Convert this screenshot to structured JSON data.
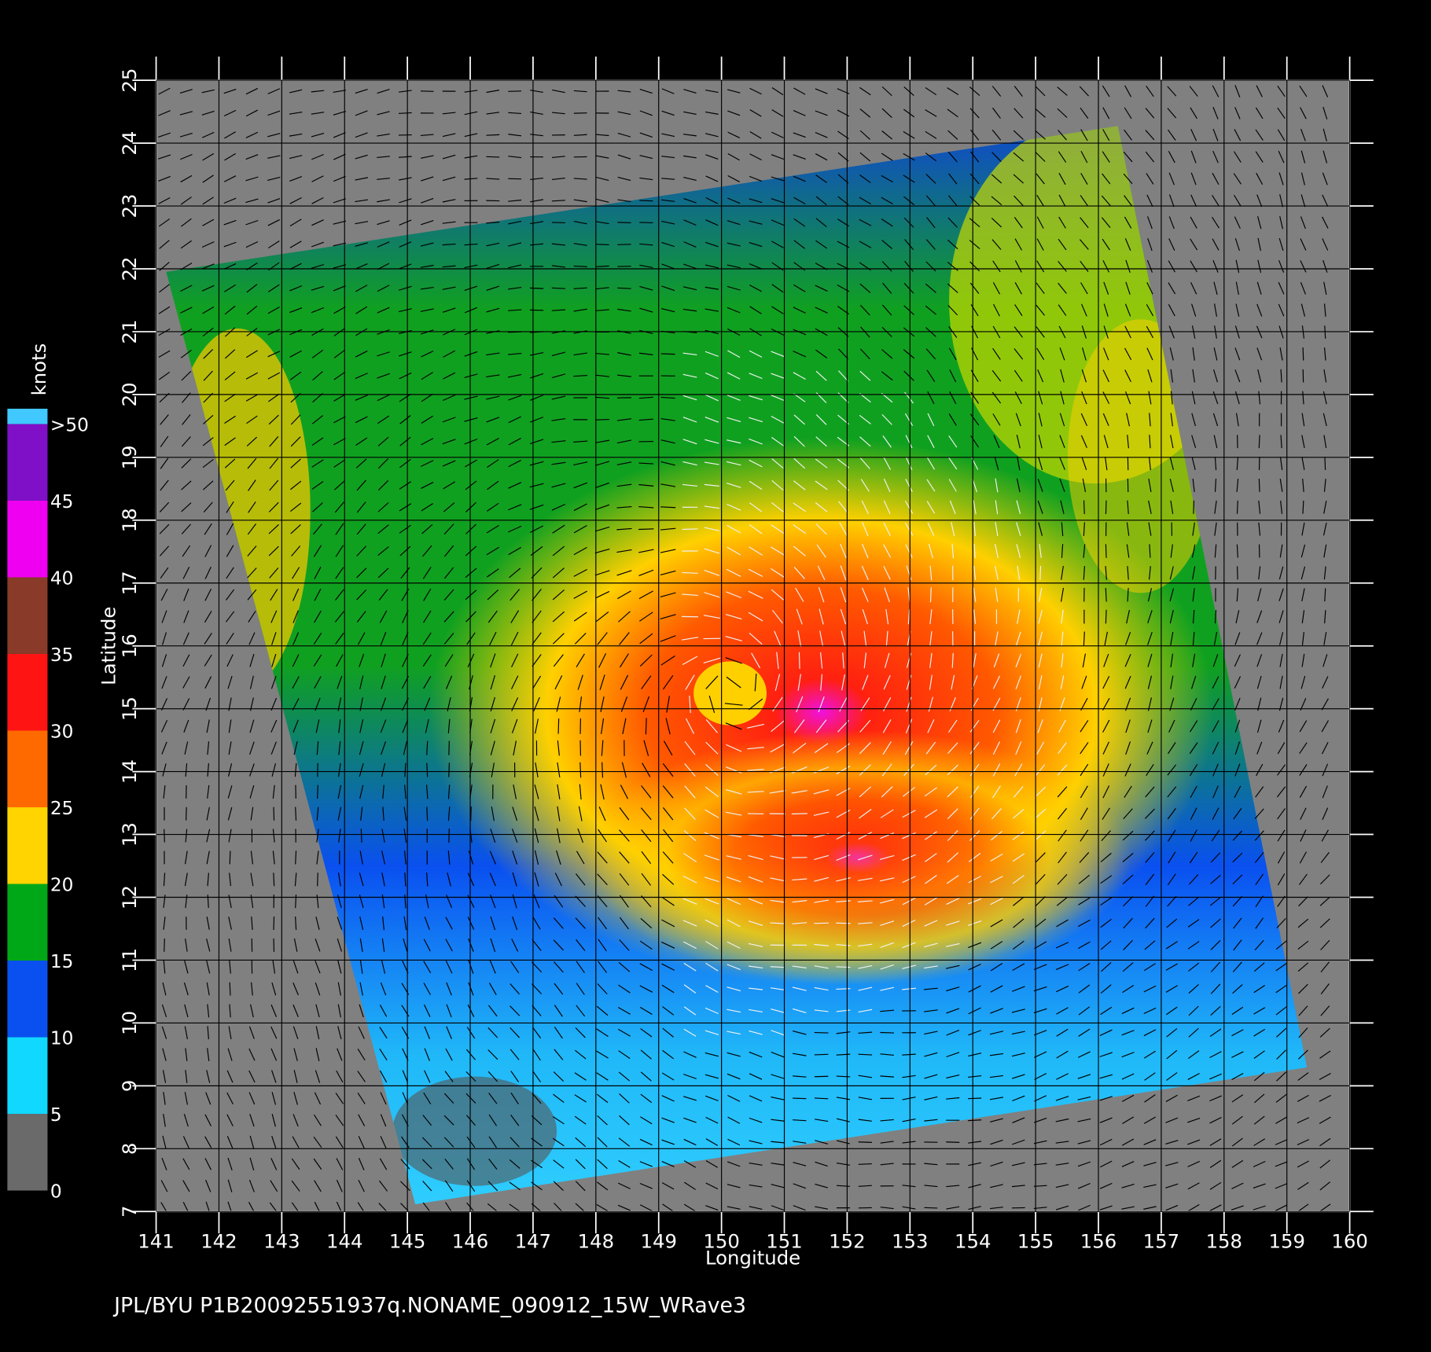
{
  "chart_data": {
    "type": "wind-map",
    "xlabel": "Longitude",
    "ylabel": "Latitude",
    "footer": "JPL/BYU  P1B20092551937q.NONAME_090912_15W_WRave3",
    "xlim": [
      141,
      160
    ],
    "ylim": [
      7,
      25
    ],
    "xticks": [
      141,
      142,
      143,
      144,
      145,
      146,
      147,
      148,
      149,
      150,
      151,
      152,
      153,
      154,
      155,
      156,
      157,
      158,
      159,
      160
    ],
    "yticks": [
      7,
      8,
      9,
      10,
      11,
      12,
      13,
      14,
      15,
      16,
      17,
      18,
      19,
      20,
      21,
      22,
      23,
      24,
      25
    ],
    "grid": true,
    "colorbar": {
      "title": "knots",
      "lim": [
        0,
        51
      ],
      "ticks": [
        0,
        5,
        10,
        15,
        20,
        25,
        30,
        35,
        40,
        45,
        {
          "value": 50,
          "label": ">50"
        }
      ],
      "colors": [
        "#6a6a6a",
        "#10d8ff",
        "#0a50f0",
        "#00a818",
        "#ffd400",
        "#ff6a00",
        "#ff1414",
        "#8a3a28",
        "#f000f0",
        "#8010c8",
        "#40c8ff"
      ]
    }
  }
}
